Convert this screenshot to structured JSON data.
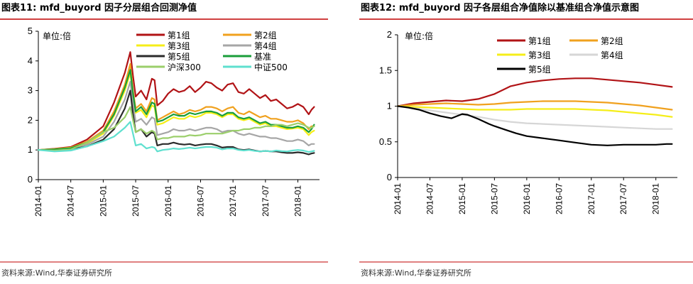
{
  "colors": {
    "title_rule": "#c00000",
    "g1": "#b11316",
    "g2": "#f0a11e",
    "g3": "#f5ee19",
    "g4": "#a6a6a6",
    "g5": "#2b2b2b",
    "bench": "#1a9e3a",
    "hs300": "#9bcf6b",
    "zz500": "#5fe0cf",
    "r1": "#b11316",
    "r2": "#f0a11e",
    "r3": "#f5ee19",
    "r4": "#d6d6d6",
    "r5": "#000000"
  },
  "chart_data": [
    {
      "type": "line",
      "title": "图表11:  mfd_buyord 因子分层组合回测净值",
      "unit_label": "单位:倍",
      "ylim": [
        0,
        5
      ],
      "yticks": [
        "5",
        "4",
        "3",
        "2",
        "1",
        "0"
      ],
      "x_ticks": [
        "2014-01",
        "2014-07",
        "2015-01",
        "2015-07",
        "2016-01",
        "2016-07",
        "2017-01",
        "2017-07",
        "2018-01"
      ],
      "x_range": [
        0,
        52
      ],
      "legend_position": "top-right",
      "source": "资料来源:Wind,华泰证券研究所",
      "series": [
        {
          "name": "第1组",
          "x": [
            0,
            3,
            6,
            9,
            12,
            14,
            16,
            17,
            17.5,
            18,
            19,
            20,
            21,
            21.5,
            22,
            23,
            24,
            25,
            26,
            27,
            28,
            29,
            30,
            31,
            32,
            33,
            34,
            35,
            36,
            37,
            38,
            39,
            40,
            41,
            42,
            43,
            44,
            45,
            46,
            47,
            48,
            49,
            50,
            50.5,
            51
          ],
          "values": [
            1.0,
            1.04,
            1.1,
            1.35,
            1.8,
            2.6,
            3.6,
            4.3,
            3.5,
            2.8,
            3.0,
            2.7,
            3.4,
            3.35,
            2.5,
            2.65,
            2.9,
            3.05,
            2.95,
            3.0,
            3.15,
            2.95,
            3.1,
            3.3,
            3.25,
            3.1,
            3.0,
            3.2,
            3.25,
            2.95,
            2.9,
            3.05,
            2.9,
            2.75,
            2.85,
            2.65,
            2.7,
            2.55,
            2.4,
            2.45,
            2.55,
            2.45,
            2.2,
            2.35,
            2.45
          ]
        },
        {
          "name": "第2组",
          "x": [
            0,
            3,
            6,
            9,
            12,
            14,
            16,
            17,
            17.5,
            18,
            19,
            20,
            21,
            21.5,
            22,
            23,
            24,
            25,
            26,
            27,
            28,
            29,
            30,
            31,
            32,
            33,
            34,
            35,
            36,
            37,
            38,
            39,
            40,
            41,
            42,
            43,
            44,
            45,
            46,
            47,
            48,
            49,
            50,
            50.5,
            51
          ],
          "values": [
            1.0,
            1.03,
            1.08,
            1.28,
            1.65,
            2.3,
            3.2,
            3.9,
            3.0,
            2.4,
            2.55,
            2.3,
            2.75,
            2.7,
            2.0,
            2.1,
            2.2,
            2.3,
            2.2,
            2.25,
            2.35,
            2.3,
            2.35,
            2.45,
            2.45,
            2.4,
            2.3,
            2.4,
            2.45,
            2.25,
            2.2,
            2.3,
            2.2,
            2.1,
            2.15,
            2.05,
            2.05,
            2.0,
            1.95,
            1.95,
            2.0,
            1.9,
            1.7,
            1.8,
            1.8
          ]
        },
        {
          "name": "第3组",
          "x": [
            0,
            3,
            6,
            9,
            12,
            14,
            16,
            17,
            17.5,
            18,
            19,
            20,
            21,
            21.5,
            22,
            23,
            24,
            25,
            26,
            27,
            28,
            29,
            30,
            31,
            32,
            33,
            34,
            35,
            36,
            37,
            38,
            39,
            40,
            41,
            42,
            43,
            44,
            45,
            46,
            47,
            48,
            49,
            50,
            50.5,
            51
          ],
          "values": [
            1.0,
            1.02,
            1.07,
            1.22,
            1.55,
            2.15,
            3.0,
            3.6,
            2.8,
            2.25,
            2.35,
            2.1,
            2.5,
            2.45,
            1.85,
            1.9,
            2.0,
            2.1,
            2.05,
            2.05,
            2.15,
            2.1,
            2.15,
            2.25,
            2.25,
            2.2,
            2.1,
            2.2,
            2.2,
            2.05,
            2.0,
            2.05,
            1.95,
            1.85,
            1.9,
            1.8,
            1.8,
            1.75,
            1.7,
            1.72,
            1.75,
            1.7,
            1.5,
            1.6,
            1.65
          ]
        },
        {
          "name": "第4组",
          "x": [
            0,
            3,
            6,
            9,
            12,
            14,
            16,
            17,
            17.5,
            18,
            19,
            20,
            21,
            21.5,
            22,
            23,
            24,
            25,
            26,
            27,
            28,
            29,
            30,
            31,
            32,
            33,
            34,
            35,
            36,
            37,
            38,
            39,
            40,
            41,
            42,
            43,
            44,
            45,
            46,
            47,
            48,
            49,
            50,
            50.5,
            51
          ],
          "values": [
            1.0,
            1.01,
            1.05,
            1.18,
            1.45,
            1.95,
            2.7,
            3.3,
            2.55,
            1.95,
            2.05,
            1.85,
            2.1,
            2.05,
            1.5,
            1.55,
            1.6,
            1.7,
            1.65,
            1.65,
            1.7,
            1.65,
            1.7,
            1.75,
            1.75,
            1.7,
            1.6,
            1.65,
            1.65,
            1.55,
            1.5,
            1.55,
            1.5,
            1.45,
            1.45,
            1.4,
            1.4,
            1.35,
            1.3,
            1.3,
            1.35,
            1.3,
            1.15,
            1.2,
            1.2
          ]
        },
        {
          "name": "第5组",
          "x": [
            0,
            3,
            6,
            9,
            12,
            14,
            16,
            17,
            17.5,
            18,
            19,
            20,
            21,
            21.5,
            22,
            23,
            24,
            25,
            26,
            27,
            28,
            29,
            30,
            31,
            32,
            33,
            34,
            35,
            36,
            37,
            38,
            39,
            40,
            41,
            42,
            43,
            44,
            45,
            46,
            47,
            48,
            49,
            50,
            50.5,
            51
          ],
          "values": [
            1.0,
            1.0,
            1.02,
            1.12,
            1.35,
            1.7,
            2.4,
            3.0,
            2.2,
            1.6,
            1.7,
            1.45,
            1.6,
            1.55,
            1.15,
            1.2,
            1.2,
            1.25,
            1.2,
            1.18,
            1.2,
            1.15,
            1.18,
            1.2,
            1.2,
            1.15,
            1.08,
            1.1,
            1.1,
            1.02,
            1.0,
            1.02,
            0.98,
            0.95,
            0.97,
            0.95,
            0.95,
            0.92,
            0.9,
            0.9,
            0.92,
            0.9,
            0.85,
            0.88,
            0.9
          ]
        },
        {
          "name": "基准",
          "x": [
            0,
            3,
            6,
            9,
            12,
            14,
            16,
            17,
            17.5,
            18,
            19,
            20,
            21,
            21.5,
            22,
            23,
            24,
            25,
            26,
            27,
            28,
            29,
            30,
            31,
            32,
            33,
            34,
            35,
            36,
            37,
            38,
            39,
            40,
            41,
            42,
            43,
            44,
            45,
            46,
            47,
            48,
            49,
            50,
            50.5,
            51
          ],
          "values": [
            1.0,
            1.02,
            1.06,
            1.25,
            1.6,
            2.2,
            3.1,
            3.7,
            2.9,
            2.3,
            2.45,
            2.2,
            2.6,
            2.55,
            1.95,
            2.0,
            2.1,
            2.2,
            2.15,
            2.15,
            2.25,
            2.2,
            2.25,
            2.3,
            2.3,
            2.25,
            2.15,
            2.25,
            2.25,
            2.1,
            2.05,
            2.1,
            2.0,
            1.9,
            1.95,
            1.85,
            1.85,
            1.8,
            1.75,
            1.75,
            1.8,
            1.75,
            1.6,
            1.7,
            1.85
          ]
        },
        {
          "name": "沪深300",
          "x": [
            0,
            3,
            6,
            9,
            12,
            14,
            16,
            17,
            17.5,
            18,
            19,
            20,
            21,
            21.5,
            22,
            23,
            24,
            25,
            26,
            27,
            28,
            29,
            30,
            31,
            32,
            33,
            34,
            35,
            36,
            37,
            38,
            39,
            40,
            41,
            42,
            43,
            44,
            45,
            46,
            47,
            48,
            49,
            50,
            50.5,
            51
          ],
          "values": [
            1.0,
            0.98,
            1.02,
            1.25,
            1.6,
            1.75,
            2.1,
            2.45,
            2.0,
            1.6,
            1.7,
            1.55,
            1.65,
            1.6,
            1.35,
            1.4,
            1.4,
            1.45,
            1.45,
            1.45,
            1.5,
            1.48,
            1.5,
            1.55,
            1.55,
            1.55,
            1.55,
            1.6,
            1.65,
            1.65,
            1.7,
            1.7,
            1.75,
            1.75,
            1.8,
            1.8,
            1.85,
            1.85,
            1.8,
            1.85,
            1.9,
            1.85,
            1.75,
            1.75,
            1.8
          ]
        },
        {
          "name": "中证500",
          "x": [
            0,
            3,
            6,
            9,
            12,
            14,
            16,
            17,
            17.5,
            18,
            19,
            20,
            21,
            21.5,
            22,
            23,
            24,
            25,
            26,
            27,
            28,
            29,
            30,
            31,
            32,
            33,
            34,
            35,
            36,
            37,
            38,
            39,
            40,
            41,
            42,
            43,
            44,
            45,
            46,
            47,
            48,
            49,
            50,
            50.5,
            51
          ],
          "values": [
            1.0,
            0.95,
            0.98,
            1.12,
            1.3,
            1.45,
            1.75,
            1.95,
            1.55,
            1.15,
            1.2,
            1.05,
            1.1,
            1.08,
            0.95,
            1.0,
            1.02,
            1.05,
            1.03,
            1.05,
            1.08,
            1.05,
            1.08,
            1.1,
            1.1,
            1.08,
            1.02,
            1.05,
            1.05,
            1.0,
            0.98,
            1.0,
            0.97,
            0.95,
            0.97,
            0.95,
            0.98,
            0.96,
            0.95,
            0.98,
            1.0,
            0.98,
            0.93,
            0.95,
            0.97
          ]
        }
      ]
    },
    {
      "type": "line",
      "title": "图表12:  mfd_buyord 因子各层组合净值除以基准组合净值示意图",
      "unit_label": "单位:倍",
      "ylim": [
        0,
        2
      ],
      "yticks": [
        "2",
        "1.5",
        "1",
        "0.5",
        "0"
      ],
      "x_ticks": [
        "2014-01",
        "2014-07",
        "2015-01",
        "2015-07",
        "2016-01",
        "2016-07",
        "2017-01",
        "2017-07",
        "2018-01"
      ],
      "x_range": [
        0,
        52
      ],
      "legend_position": "top-left",
      "source": "资料来源:Wind,华泰证券研究所",
      "series": [
        {
          "name": "第1组",
          "x": [
            0,
            3,
            6,
            9,
            12,
            15,
            18,
            21,
            24,
            27,
            30,
            33,
            36,
            39,
            42,
            45,
            48,
            51
          ],
          "values": [
            1.0,
            1.04,
            1.06,
            1.08,
            1.07,
            1.1,
            1.17,
            1.28,
            1.33,
            1.36,
            1.38,
            1.39,
            1.39,
            1.37,
            1.35,
            1.33,
            1.3,
            1.27
          ]
        },
        {
          "name": "第2组",
          "x": [
            0,
            3,
            6,
            9,
            12,
            15,
            18,
            21,
            24,
            27,
            30,
            33,
            36,
            39,
            42,
            45,
            48,
            51
          ],
          "values": [
            1.0,
            1.02,
            1.03,
            1.04,
            1.03,
            1.02,
            1.03,
            1.05,
            1.06,
            1.07,
            1.07,
            1.07,
            1.06,
            1.05,
            1.03,
            1.01,
            0.98,
            0.95
          ]
        },
        {
          "name": "第3组",
          "x": [
            0,
            3,
            6,
            9,
            12,
            15,
            18,
            21,
            24,
            27,
            30,
            33,
            36,
            39,
            42,
            45,
            48,
            51
          ],
          "values": [
            1.0,
            0.99,
            0.98,
            0.97,
            0.96,
            0.95,
            0.95,
            0.95,
            0.96,
            0.96,
            0.96,
            0.96,
            0.95,
            0.94,
            0.92,
            0.9,
            0.88,
            0.85
          ]
        },
        {
          "name": "第4组",
          "x": [
            0,
            3,
            6,
            9,
            12,
            15,
            18,
            21,
            24,
            27,
            30,
            33,
            36,
            39,
            42,
            45,
            48,
            51
          ],
          "values": [
            1.0,
            0.97,
            0.94,
            0.91,
            0.88,
            0.85,
            0.81,
            0.78,
            0.76,
            0.75,
            0.74,
            0.73,
            0.72,
            0.71,
            0.7,
            0.69,
            0.68,
            0.68
          ]
        },
        {
          "name": "第5组",
          "x": [
            0,
            2,
            4,
            6,
            8,
            10,
            12,
            13,
            15,
            17,
            18,
            20,
            22,
            24,
            27,
            30,
            33,
            36,
            39,
            42,
            45,
            48,
            50,
            51
          ],
          "values": [
            1.0,
            0.98,
            0.95,
            0.9,
            0.86,
            0.83,
            0.89,
            0.88,
            0.82,
            0.75,
            0.72,
            0.67,
            0.62,
            0.58,
            0.55,
            0.52,
            0.49,
            0.46,
            0.45,
            0.46,
            0.46,
            0.46,
            0.47,
            0.47
          ]
        }
      ]
    }
  ]
}
